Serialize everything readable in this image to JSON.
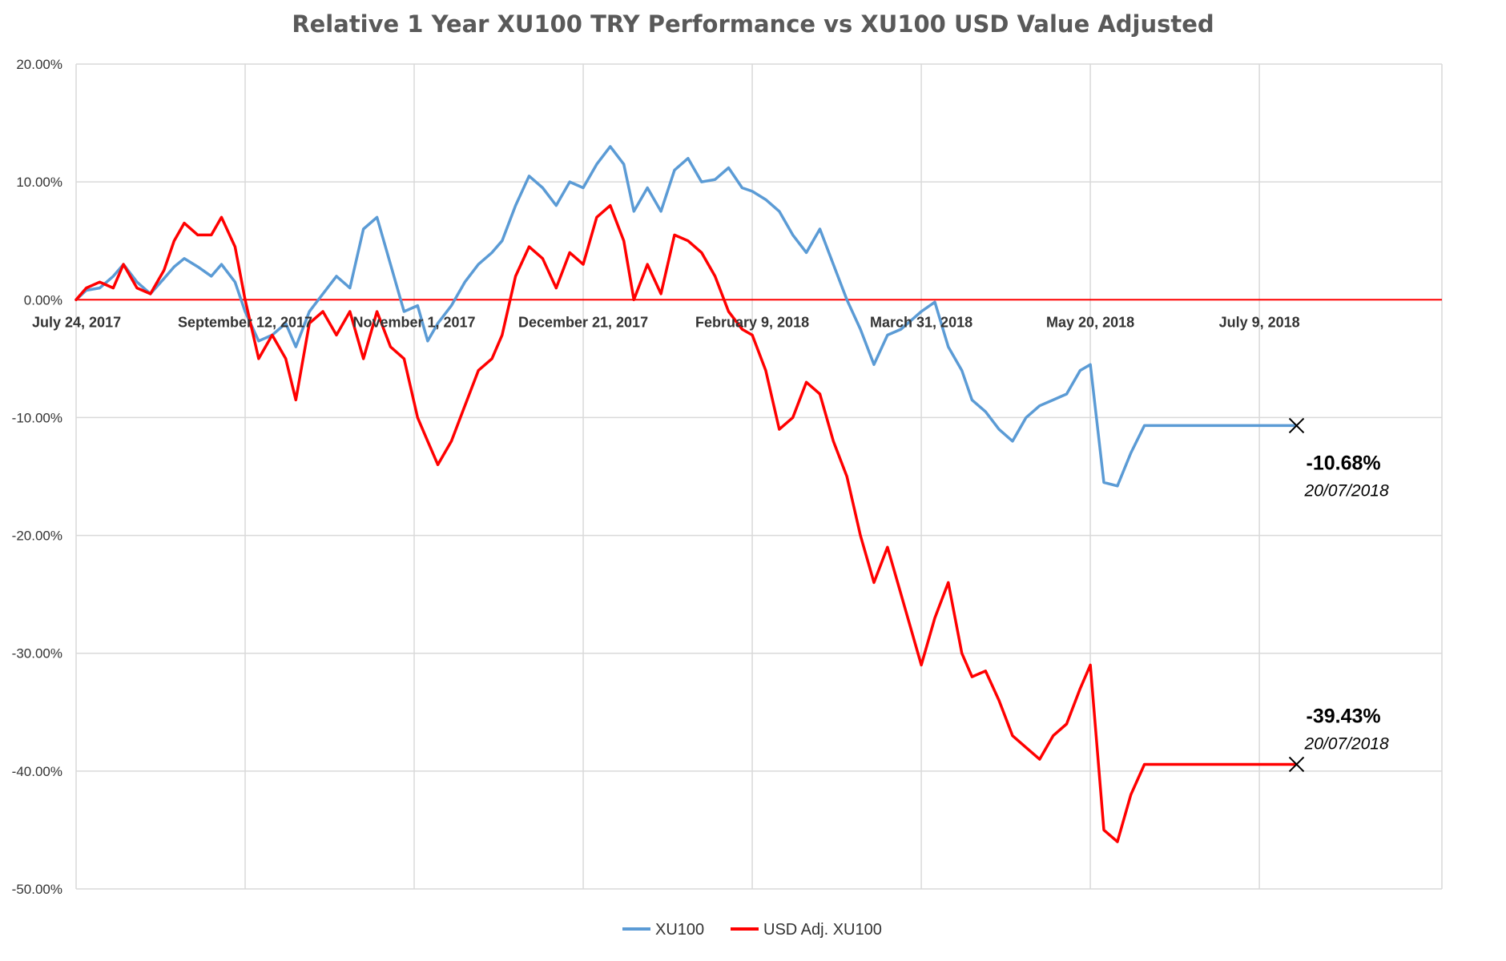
{
  "colors": {
    "xu100": "#5b9bd5",
    "usd_adj": "#ff0000",
    "zero_line": "#ff0000",
    "grid": "#d9d9d9",
    "title": "#595959"
  },
  "chart_data": {
    "type": "line",
    "title": "Relative 1 Year XU100 TRY Performance vs XU100 USD Value Adjusted",
    "xlabel": "",
    "ylabel": "",
    "ylim": [
      -50,
      20
    ],
    "xlim": [
      "2017-07-24",
      "2018-09-01"
    ],
    "x_tick_dates": [
      "2017-07-24",
      "2017-09-12",
      "2017-11-01",
      "2017-12-21",
      "2018-02-09",
      "2018-03-31",
      "2018-05-20",
      "2018-07-09"
    ],
    "x_tick_labels": [
      "July 24, 2017",
      "September 12, 2017",
      "November 1, 2017",
      "December 21, 2017",
      "February 9, 2018",
      "March 31, 2018",
      "May 20, 2018",
      "July 9, 2018"
    ],
    "y_ticks": [
      20,
      10,
      0,
      -10,
      -20,
      -30,
      -40,
      -50
    ],
    "y_tick_labels": [
      "20.00%",
      "10.00%",
      "0.00%",
      "-10.00%",
      "-20.00%",
      "-30.00%",
      "-40.00%",
      "-50.00%"
    ],
    "grid": true,
    "legend_position": "bottom",
    "series": [
      {
        "name": "XU100",
        "color": "#5b9bd5",
        "x": [
          "2017-07-24",
          "2017-07-27",
          "2017-07-31",
          "2017-08-04",
          "2017-08-07",
          "2017-08-11",
          "2017-08-15",
          "2017-08-19",
          "2017-08-22",
          "2017-08-25",
          "2017-08-29",
          "2017-09-02",
          "2017-09-05",
          "2017-09-09",
          "2017-09-12",
          "2017-09-16",
          "2017-09-20",
          "2017-09-24",
          "2017-09-27",
          "2017-10-01",
          "2017-10-05",
          "2017-10-09",
          "2017-10-13",
          "2017-10-17",
          "2017-10-21",
          "2017-10-25",
          "2017-10-29",
          "2017-11-02",
          "2017-11-05",
          "2017-11-08",
          "2017-11-12",
          "2017-11-16",
          "2017-11-20",
          "2017-11-24",
          "2017-11-27",
          "2017-12-01",
          "2017-12-05",
          "2017-12-09",
          "2017-12-13",
          "2017-12-17",
          "2017-12-21",
          "2017-12-25",
          "2017-12-29",
          "2018-01-02",
          "2018-01-05",
          "2018-01-09",
          "2018-01-13",
          "2018-01-17",
          "2018-01-21",
          "2018-01-25",
          "2018-01-29",
          "2018-02-02",
          "2018-02-06",
          "2018-02-09",
          "2018-02-13",
          "2018-02-17",
          "2018-02-21",
          "2018-02-25",
          "2018-03-01",
          "2018-03-05",
          "2018-03-09",
          "2018-03-13",
          "2018-03-17",
          "2018-03-21",
          "2018-03-25",
          "2018-03-31",
          "2018-04-04",
          "2018-04-08",
          "2018-04-12",
          "2018-04-15",
          "2018-04-19",
          "2018-04-23",
          "2018-04-27",
          "2018-05-01",
          "2018-05-05",
          "2018-05-09",
          "2018-05-13",
          "2018-05-17",
          "2018-05-20",
          "2018-05-24",
          "2018-05-28",
          "2018-06-01",
          "2018-06-05",
          "2018-06-09",
          "2018-06-13",
          "2018-06-17",
          "2018-06-21",
          "2018-06-25",
          "2018-06-29",
          "2018-07-03",
          "2018-07-06",
          "2018-07-09",
          "2018-07-11",
          "2018-07-13",
          "2018-07-15",
          "2018-07-17",
          "2018-07-20"
        ],
        "values": [
          0.0,
          0.8,
          1.0,
          2.0,
          3.0,
          1.5,
          0.5,
          1.8,
          2.8,
          3.5,
          2.8,
          2.0,
          3.0,
          1.5,
          -1.0,
          -3.5,
          -3.0,
          -2.0,
          -4.0,
          -1.0,
          0.5,
          2.0,
          1.0,
          6.0,
          7.0,
          3.0,
          -1.0,
          -0.5,
          -3.5,
          -2.0,
          -0.5,
          1.5,
          3.0,
          4.0,
          5.0,
          8.0,
          10.5,
          9.5,
          8.0,
          10.0,
          9.5,
          11.5,
          13.0,
          11.5,
          7.5,
          9.5,
          7.5,
          11.0,
          12.0,
          10.0,
          10.2,
          11.2,
          9.5,
          9.2,
          8.5,
          7.5,
          5.5,
          4.0,
          6.0,
          3.0,
          0.0,
          -2.5,
          -5.5,
          -3.0,
          -2.5,
          -1.0,
          -0.2,
          -4.0,
          -6.0,
          -8.5,
          -9.5,
          -11.0,
          -12.0,
          -10.0,
          -9.0,
          -8.5,
          -8.0,
          -6.0,
          -5.5,
          -15.5,
          -15.8,
          -13.0,
          -10.68,
          -10.68,
          -10.68,
          -10.68,
          -10.68,
          -10.68,
          -10.68,
          -10.68,
          -10.68,
          -10.68,
          -10.68,
          -10.68,
          -10.68,
          -10.68,
          -10.68
        ]
      },
      {
        "name": "USD Adj. XU100",
        "color": "#ff0000",
        "x": [
          "2017-07-24",
          "2017-07-27",
          "2017-07-31",
          "2017-08-04",
          "2017-08-07",
          "2017-08-11",
          "2017-08-15",
          "2017-08-19",
          "2017-08-22",
          "2017-08-25",
          "2017-08-29",
          "2017-09-02",
          "2017-09-05",
          "2017-09-09",
          "2017-09-12",
          "2017-09-16",
          "2017-09-20",
          "2017-09-24",
          "2017-09-27",
          "2017-10-01",
          "2017-10-05",
          "2017-10-09",
          "2017-10-13",
          "2017-10-17",
          "2017-10-21",
          "2017-10-25",
          "2017-10-29",
          "2017-11-02",
          "2017-11-05",
          "2017-11-08",
          "2017-11-12",
          "2017-11-16",
          "2017-11-20",
          "2017-11-24",
          "2017-11-27",
          "2017-12-01",
          "2017-12-05",
          "2017-12-09",
          "2017-12-13",
          "2017-12-17",
          "2017-12-21",
          "2017-12-25",
          "2017-12-29",
          "2018-01-02",
          "2018-01-05",
          "2018-01-09",
          "2018-01-13",
          "2018-01-17",
          "2018-01-21",
          "2018-01-25",
          "2018-01-29",
          "2018-02-02",
          "2018-02-06",
          "2018-02-09",
          "2018-02-13",
          "2018-02-17",
          "2018-02-21",
          "2018-02-25",
          "2018-03-01",
          "2018-03-05",
          "2018-03-09",
          "2018-03-13",
          "2018-03-17",
          "2018-03-21",
          "2018-03-25",
          "2018-03-31",
          "2018-04-04",
          "2018-04-08",
          "2018-04-12",
          "2018-04-15",
          "2018-04-19",
          "2018-04-23",
          "2018-04-27",
          "2018-05-01",
          "2018-05-05",
          "2018-05-09",
          "2018-05-13",
          "2018-05-17",
          "2018-05-20",
          "2018-05-24",
          "2018-05-28",
          "2018-06-01",
          "2018-06-05",
          "2018-06-09",
          "2018-06-13",
          "2018-06-17",
          "2018-06-21",
          "2018-06-25",
          "2018-06-29",
          "2018-07-03",
          "2018-07-06",
          "2018-07-09",
          "2018-07-11",
          "2018-07-13",
          "2018-07-15",
          "2018-07-17",
          "2018-07-20"
        ],
        "values": [
          0.0,
          1.0,
          1.5,
          1.0,
          3.0,
          1.0,
          0.5,
          2.5,
          5.0,
          6.5,
          5.5,
          5.5,
          7.0,
          4.5,
          0.0,
          -5.0,
          -3.0,
          -5.0,
          -8.5,
          -2.0,
          -1.0,
          -3.0,
          -1.0,
          -5.0,
          -1.0,
          -4.0,
          -5.0,
          -10.0,
          -12.0,
          -14.0,
          -12.0,
          -9.0,
          -6.0,
          -5.0,
          -3.0,
          2.0,
          4.5,
          3.5,
          1.0,
          4.0,
          3.0,
          7.0,
          8.0,
          5.0,
          0.0,
          3.0,
          0.5,
          5.5,
          5.0,
          4.0,
          2.0,
          -1.0,
          -2.5,
          -3.0,
          -6.0,
          -11.0,
          -10.0,
          -7.0,
          -8.0,
          -12.0,
          -15.0,
          -20.0,
          -24.0,
          -21.0,
          -25.0,
          -31.0,
          -27.0,
          -24.0,
          -30.0,
          -32.0,
          -31.5,
          -34.0,
          -37.0,
          -38.0,
          -39.0,
          -37.0,
          -36.0,
          -33.0,
          -31.0,
          -45.0,
          -46.0,
          -42.0,
          -39.43,
          -39.43,
          -39.43,
          -39.43,
          -39.43,
          -39.43,
          -39.43,
          -39.43,
          -39.43,
          -39.43,
          -39.43,
          -39.43,
          -39.43,
          -39.43,
          -39.43
        ]
      }
    ],
    "annotations": [
      {
        "series": "XU100",
        "value_label": "-10.68%",
        "date_label": "20/07/2018",
        "x": "2018-07-20",
        "y": -10.68,
        "marker": "x"
      },
      {
        "series": "USD Adj. XU100",
        "value_label": "-39.43%",
        "date_label": "20/07/2018",
        "x": "2018-07-20",
        "y": -39.43,
        "marker": "x"
      }
    ]
  }
}
